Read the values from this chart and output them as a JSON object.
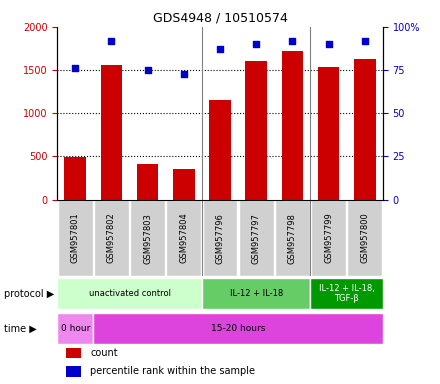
{
  "title": "GDS4948 / 10510574",
  "samples": [
    "GSM957801",
    "GSM957802",
    "GSM957803",
    "GSM957804",
    "GSM957796",
    "GSM957797",
    "GSM957798",
    "GSM957799",
    "GSM957800"
  ],
  "counts": [
    490,
    1560,
    410,
    360,
    1150,
    1600,
    1720,
    1530,
    1630
  ],
  "percentile_ranks": [
    76,
    92,
    75,
    73,
    87,
    90,
    92,
    90,
    92
  ],
  "bar_color": "#cc0000",
  "dot_color": "#0000cc",
  "ylim_left": [
    0,
    2000
  ],
  "ylim_right": [
    0,
    100
  ],
  "yticks_left": [
    0,
    500,
    1000,
    1500,
    2000
  ],
  "yticks_right": [
    0,
    25,
    50,
    75,
    100
  ],
  "ytick_labels_right": [
    "0",
    "25",
    "50",
    "75",
    "100%"
  ],
  "protocol_groups": [
    {
      "label": "unactivated control",
      "start": 0,
      "end": 4,
      "color": "#ccffcc"
    },
    {
      "label": "IL-12 + IL-18",
      "start": 4,
      "end": 7,
      "color": "#66cc66"
    },
    {
      "label": "IL-12 + IL-18,\nTGF-β",
      "start": 7,
      "end": 9,
      "color": "#009900"
    }
  ],
  "time_groups": [
    {
      "label": "0 hour",
      "start": 0,
      "end": 1,
      "color": "#ee88ee"
    },
    {
      "label": "15-20 hours",
      "start": 1,
      "end": 9,
      "color": "#dd44dd"
    }
  ],
  "legend_items": [
    {
      "color": "#cc0000",
      "label": "count"
    },
    {
      "color": "#0000cc",
      "label": "percentile rank within the sample"
    }
  ],
  "group_boundaries": [
    3.5,
    6.5
  ],
  "gridline_values": [
    500,
    1000,
    1500
  ]
}
